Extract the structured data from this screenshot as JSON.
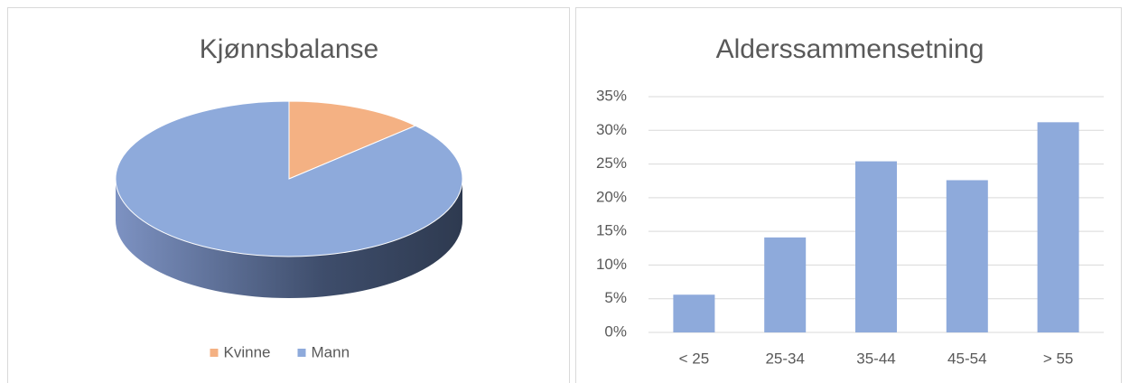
{
  "chart_data": [
    {
      "type": "pie",
      "title": "Kjønnsbalanse",
      "categories": [
        "Kvinne",
        "Mann"
      ],
      "values": [
        13,
        87
      ],
      "colors": [
        "#f4b183",
        "#8eaadb"
      ],
      "legend": "bottom"
    },
    {
      "type": "bar",
      "title": "Alderssammensetning",
      "categories": [
        "< 25",
        "25-34",
        "35-44",
        "45-54",
        "> 55"
      ],
      "values": [
        5.6,
        14.1,
        25.4,
        22.6,
        31.2
      ],
      "color": "#8eaadb",
      "ylim": [
        0,
        35
      ],
      "yticks": [
        {
          "value": 0,
          "label": "0%"
        },
        {
          "value": 5,
          "label": "5%"
        },
        {
          "value": 10,
          "label": "10%"
        },
        {
          "value": 15,
          "label": "15%"
        },
        {
          "value": 20,
          "label": "20%"
        },
        {
          "value": 25,
          "label": "25%"
        },
        {
          "value": 30,
          "label": "30%"
        },
        {
          "value": 35,
          "label": "35%"
        }
      ],
      "grid": true
    }
  ]
}
